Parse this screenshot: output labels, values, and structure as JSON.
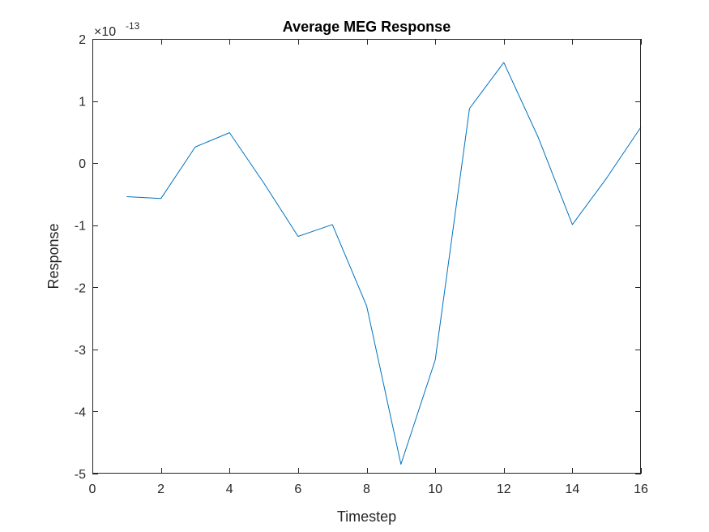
{
  "chart_data": {
    "type": "line",
    "title": "Average MEG Response",
    "xlabel": "Timestep",
    "ylabel": "Response",
    "xlim": [
      0,
      16
    ],
    "ylim": [
      -5,
      2
    ],
    "x_ticks": [
      0,
      2,
      4,
      6,
      8,
      10,
      12,
      14,
      16
    ],
    "y_ticks": [
      -5,
      -4,
      -3,
      -2,
      -1,
      0,
      1,
      2
    ],
    "x_tick_labels": [
      "0",
      "2",
      "4",
      "6",
      "8",
      "10",
      "12",
      "14",
      "16"
    ],
    "y_tick_labels": [
      "-5",
      "-4",
      "-3",
      "-2",
      "-1",
      "0",
      "1",
      "2"
    ],
    "y_exponent": {
      "base": "×10",
      "power": "-13"
    },
    "grid": false,
    "series": [
      {
        "color": "#0072BD",
        "x": [
          1,
          2,
          3,
          4,
          5,
          6,
          7,
          8,
          9,
          10,
          11,
          12,
          13,
          14,
          15,
          16
        ],
        "values": [
          -0.54,
          -0.57,
          0.26,
          0.49,
          -0.32,
          -1.18,
          -0.99,
          -2.3,
          -4.85,
          -3.17,
          0.88,
          1.62,
          0.42,
          -0.99,
          -0.24,
          0.58
        ]
      }
    ]
  }
}
